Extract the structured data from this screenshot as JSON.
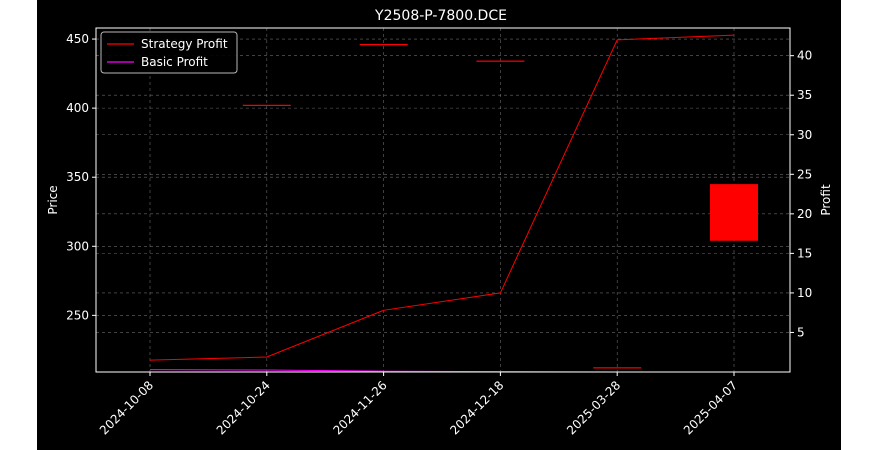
{
  "chart_data": {
    "type": "line",
    "title": "Y2508-P-7800.DCE",
    "xlabel": "",
    "ylabel_left": "Price",
    "ylabel_right": "Profit",
    "categories": [
      "2024-10-08",
      "2024-10-24",
      "2024-11-26",
      "2024-12-18",
      "2025-03-28",
      "2025-04-07"
    ],
    "y_left": {
      "ticks": [
        250,
        300,
        350,
        400,
        450
      ],
      "ylim": [
        209,
        458
      ]
    },
    "y_right": {
      "ticks": [
        5,
        10,
        15,
        20,
        25,
        30,
        35,
        40
      ],
      "ylim": [
        0,
        43.5
      ]
    },
    "series": [
      {
        "name": "Strategy Profit",
        "color": "#ff0000",
        "axis": "right",
        "values": [
          1.5,
          1.9,
          7.8,
          10.0,
          42.0,
          42.6
        ]
      },
      {
        "name": "Basic Profit",
        "color": "#ff00ff",
        "axis": "right",
        "values": [
          0.3,
          0.25,
          0.1,
          0.05,
          0.0,
          0.0
        ]
      }
    ],
    "candles": [
      {
        "x": "2024-10-24",
        "open": 402,
        "close": 402,
        "color": "#ff0000"
      },
      {
        "x": "2024-11-26",
        "open": 446,
        "close": 446,
        "color": "#ff0000"
      },
      {
        "x": "2024-12-18",
        "open": 434,
        "close": 434,
        "color": "#ff0000"
      },
      {
        "x": "2025-03-28",
        "open": 212,
        "close": 212,
        "color": "#ff0000"
      },
      {
        "x": "2025-04-07",
        "open": 345,
        "close": 304,
        "color": "#ff0000"
      }
    ],
    "grid": true,
    "legend_position": "top-left",
    "background": "#000000"
  }
}
